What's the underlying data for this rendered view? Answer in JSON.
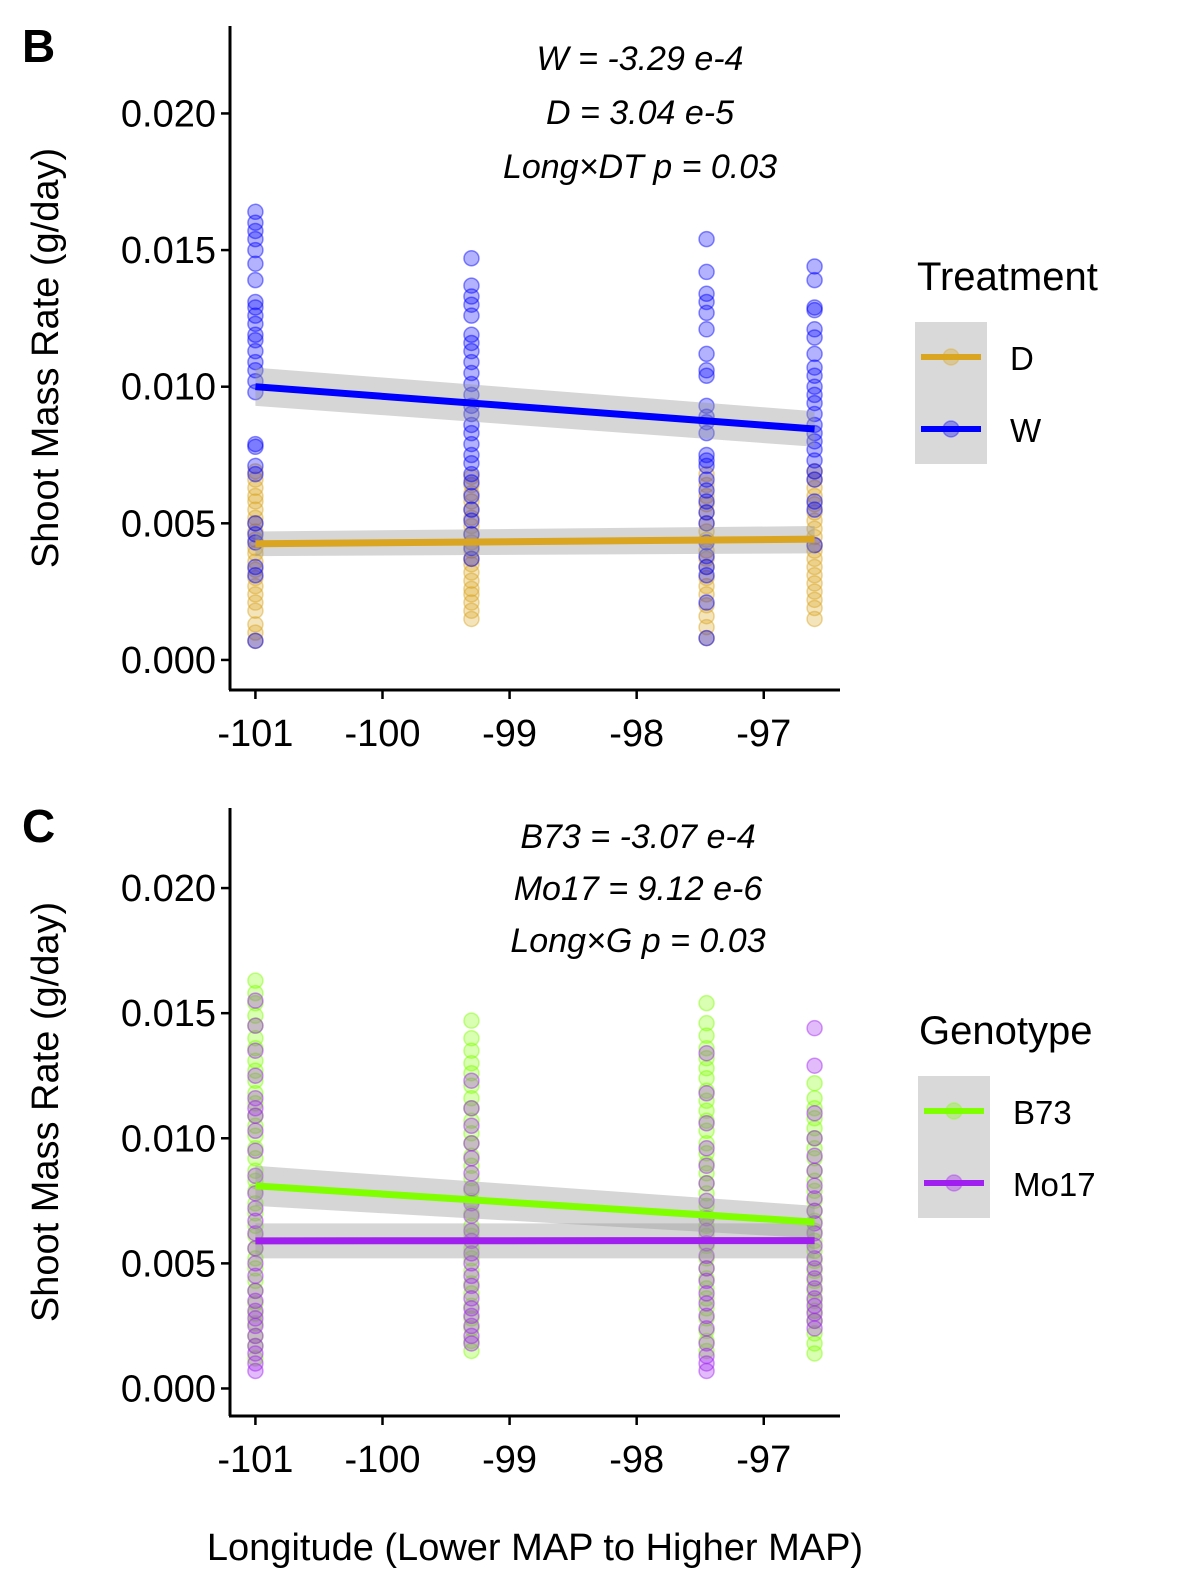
{
  "colors": {
    "D": "#DAA520",
    "W": "#0000FF",
    "B73": "#7FFF00",
    "Mo17": "#A020F0",
    "ribbon": "#999999",
    "legend_key_bg": "#D9D9D9"
  },
  "chart_data": [
    {
      "type": "scatter",
      "panel_label": "B",
      "xlabel": "",
      "ylabel": "Shoot Mass Rate (g/day)",
      "xlim": [
        -101.2,
        -96.4
      ],
      "ylim": [
        -0.0011,
        0.0232
      ],
      "xticks": [
        -101,
        -100,
        -99,
        -98,
        -97
      ],
      "xtick_labels": [
        "-101",
        "-100",
        "-99",
        "-98",
        "-97"
      ],
      "yticks": [
        0,
        0.005,
        0.01,
        0.015,
        0.02
      ],
      "ytick_labels": [
        "0.000",
        "0.005",
        "0.010",
        "0.015",
        "0.020"
      ],
      "grid": false,
      "annotations": [
        "W = -3.29 e-4",
        "D = 3.04 e-5",
        "Long×DT p = 0.03"
      ],
      "legend": {
        "title": "Treatment",
        "position": "right",
        "entries": [
          "D",
          "W"
        ]
      },
      "x_groups": [
        -101.0,
        -99.3,
        -97.45,
        -96.6
      ],
      "series": [
        {
          "name": "D",
          "color_key": "D",
          "points": [
            [
              -101.0,
              [
                0.0007,
                0.001,
                0.0013,
                0.0018,
                0.0021,
                0.0024,
                0.0027,
                0.003,
                0.0033,
                0.0036,
                0.0039,
                0.0041,
                0.0044,
                0.0047,
                0.005,
                0.0052,
                0.0055,
                0.0058,
                0.006,
                0.0063,
                0.0066,
                0.0069
              ]
            ],
            [
              -99.3,
              [
                0.0015,
                0.0018,
                0.0021,
                0.0024,
                0.0026,
                0.0029,
                0.0032,
                0.0035,
                0.0037,
                0.004,
                0.0043,
                0.0046,
                0.0049,
                0.0052,
                0.0055,
                0.0058,
                0.0061,
                0.0064,
                0.0067
              ]
            ],
            [
              -97.45,
              [
                0.0008,
                0.0012,
                0.0016,
                0.002,
                0.0024,
                0.0027,
                0.003,
                0.0034,
                0.0037,
                0.004,
                0.0044,
                0.0047,
                0.005,
                0.0054,
                0.0057,
                0.006,
                0.0064,
                0.0068
              ]
            ],
            [
              -96.6,
              [
                0.0015,
                0.0019,
                0.0022,
                0.0025,
                0.0028,
                0.0031,
                0.0034,
                0.0037,
                0.004,
                0.0042,
                0.0045,
                0.0048,
                0.0051,
                0.0054,
                0.0057,
                0.006,
                0.0063,
                0.0066,
                0.0069
              ]
            ]
          ],
          "fit": {
            "x": [
              -101.0,
              -96.6
            ],
            "y": [
              0.00425,
              0.00442
            ],
            "se_low": [
              0.0038,
              0.0039
            ],
            "se_high": [
              0.0047,
              0.0049
            ]
          }
        },
        {
          "name": "W",
          "color_key": "W",
          "points": [
            [
              -101.0,
              [
                0.0007,
                0.0031,
                0.0034,
                0.0043,
                0.0046,
                0.005,
                0.0068,
                0.0071,
                0.0078,
                0.0079,
                0.0098,
                0.0102,
                0.0106,
                0.0109,
                0.0113,
                0.0117,
                0.0119,
                0.0123,
                0.0126,
                0.0129,
                0.0131,
                0.0139,
                0.0145,
                0.015,
                0.0154,
                0.0157,
                0.016,
                0.0164
              ]
            ],
            [
              -99.3,
              [
                0.0037,
                0.0041,
                0.0046,
                0.0051,
                0.0055,
                0.006,
                0.0065,
                0.0068,
                0.0072,
                0.0075,
                0.0079,
                0.0083,
                0.0086,
                0.009,
                0.0093,
                0.0097,
                0.0101,
                0.0105,
                0.0109,
                0.0113,
                0.0116,
                0.0119,
                0.0126,
                0.013,
                0.0133,
                0.0137,
                0.0147
              ]
            ],
            [
              -97.45,
              [
                0.0008,
                0.0021,
                0.0031,
                0.0034,
                0.0038,
                0.0043,
                0.005,
                0.0054,
                0.0058,
                0.0062,
                0.0066,
                0.0071,
                0.0073,
                0.0075,
                0.0083,
                0.0087,
                0.0089,
                0.0093,
                0.0104,
                0.0106,
                0.0112,
                0.0121,
                0.0127,
                0.0131,
                0.0134,
                0.0142,
                0.0154
              ]
            ],
            [
              -96.6,
              [
                0.0042,
                0.0055,
                0.0058,
                0.0066,
                0.0069,
                0.0073,
                0.0077,
                0.008,
                0.0083,
                0.0086,
                0.009,
                0.0094,
                0.0097,
                0.01,
                0.0104,
                0.0107,
                0.0112,
                0.0118,
                0.0121,
                0.0128,
                0.0129,
                0.0139,
                0.0144
              ]
            ]
          ],
          "fit": {
            "x": [
              -101.0,
              -96.6
            ],
            "y": [
              0.01,
              0.00845
            ],
            "se_low": [
              0.0093,
              0.0078
            ],
            "se_high": [
              0.0107,
              0.0091
            ]
          }
        }
      ]
    },
    {
      "type": "scatter",
      "panel_label": "C",
      "xlabel": "Longitude (Lower MAP to Higher MAP)",
      "ylabel": "Shoot Mass Rate (g/day)",
      "xlim": [
        -101.2,
        -96.4
      ],
      "ylim": [
        -0.0011,
        0.0232
      ],
      "xticks": [
        -101,
        -100,
        -99,
        -98,
        -97
      ],
      "xtick_labels": [
        "-101",
        "-100",
        "-99",
        "-98",
        "-97"
      ],
      "yticks": [
        0,
        0.005,
        0.01,
        0.015,
        0.02
      ],
      "ytick_labels": [
        "0.000",
        "0.005",
        "0.010",
        "0.015",
        "0.020"
      ],
      "grid": false,
      "annotations": [
        "B73 = -3.07 e-4",
        "Mo17 = 9.12 e-6",
        "Long×G p = 0.03"
      ],
      "legend": {
        "title": "Genotype",
        "position": "right",
        "entries": [
          "B73",
          "Mo17"
        ]
      },
      "x_groups": [
        -101.0,
        -99.3,
        -97.45,
        -96.6
      ],
      "series": [
        {
          "name": "B73",
          "color_key": "B73",
          "points": [
            [
              -101.0,
              [
                0.0012,
                0.0017,
                0.0021,
                0.0026,
                0.003,
                0.0034,
                0.0039,
                0.0043,
                0.0048,
                0.0052,
                0.0056,
                0.0061,
                0.0065,
                0.007,
                0.0074,
                0.0079,
                0.0083,
                0.0087,
                0.0092,
                0.0096,
                0.0101,
                0.0105,
                0.0109,
                0.0114,
                0.0118,
                0.0123,
                0.0127,
                0.0131,
                0.0136,
                0.014,
                0.0145,
                0.0149,
                0.0154,
                0.0158,
                0.0163
              ]
            ],
            [
              -99.3,
              [
                0.0015,
                0.0019,
                0.0024,
                0.0028,
                0.0033,
                0.0038,
                0.0042,
                0.0047,
                0.0052,
                0.0056,
                0.0061,
                0.0065,
                0.007,
                0.0075,
                0.0079,
                0.0084,
                0.0089,
                0.0093,
                0.0098,
                0.0102,
                0.0107,
                0.0112,
                0.0116,
                0.0121,
                0.0126,
                0.013,
                0.0135,
                0.014,
                0.0147
              ]
            ],
            [
              -97.45,
              [
                0.0015,
                0.0019,
                0.0023,
                0.0028,
                0.0032,
                0.0036,
                0.004,
                0.0044,
                0.0048,
                0.0052,
                0.0057,
                0.0061,
                0.0065,
                0.0069,
                0.0073,
                0.0078,
                0.0082,
                0.0086,
                0.009,
                0.0094,
                0.0098,
                0.0103,
                0.0107,
                0.0111,
                0.0115,
                0.0119,
                0.0124,
                0.0128,
                0.0132,
                0.0136,
                0.0141,
                0.0146,
                0.0154
              ]
            ],
            [
              -96.6,
              [
                0.0014,
                0.0018,
                0.0022,
                0.0027,
                0.0031,
                0.0035,
                0.0039,
                0.0043,
                0.0047,
                0.0051,
                0.0055,
                0.0059,
                0.0063,
                0.0067,
                0.0071,
                0.0075,
                0.0079,
                0.0083,
                0.0087,
                0.0092,
                0.0096,
                0.01,
                0.0104,
                0.0108,
                0.0112,
                0.0116,
                0.0122
              ]
            ]
          ],
          "fit": {
            "x": [
              -101.0,
              -96.6
            ],
            "y": [
              0.0081,
              0.00665
            ],
            "se_low": [
              0.0073,
              0.006
            ],
            "se_high": [
              0.0089,
              0.0073
            ]
          }
        },
        {
          "name": "Mo17",
          "color_key": "Mo17",
          "points": [
            [
              -101.0,
              [
                0.0007,
                0.001,
                0.0014,
                0.0017,
                0.0021,
                0.0025,
                0.0028,
                0.0031,
                0.0035,
                0.0039,
                0.0045,
                0.005,
                0.0056,
                0.0062,
                0.0067,
                0.0072,
                0.0078,
                0.0085,
                0.0095,
                0.0103,
                0.0109,
                0.0112,
                0.0116,
                0.0125,
                0.0135,
                0.0145,
                0.0155
              ]
            ],
            [
              -99.3,
              [
                0.0018,
                0.0021,
                0.0025,
                0.0029,
                0.0032,
                0.0036,
                0.0041,
                0.0045,
                0.005,
                0.0054,
                0.0059,
                0.0063,
                0.0069,
                0.0074,
                0.008,
                0.0086,
                0.0092,
                0.0098,
                0.0105,
                0.0112,
                0.0123
              ]
            ],
            [
              -97.45,
              [
                0.0007,
                0.001,
                0.0013,
                0.0018,
                0.0024,
                0.0029,
                0.0034,
                0.0038,
                0.0043,
                0.0048,
                0.0053,
                0.0058,
                0.0063,
                0.0068,
                0.0075,
                0.0082,
                0.0089,
                0.0096,
                0.0106,
                0.0118,
                0.0134
              ]
            ],
            [
              -96.6,
              [
                0.0024,
                0.0027,
                0.003,
                0.0033,
                0.0036,
                0.004,
                0.0044,
                0.0048,
                0.0052,
                0.0057,
                0.0062,
                0.0066,
                0.0071,
                0.0076,
                0.0081,
                0.0087,
                0.0093,
                0.01,
                0.011,
                0.0129,
                0.0144
              ]
            ]
          ],
          "fit": {
            "x": [
              -101.0,
              -96.6
            ],
            "y": [
              0.0059,
              0.00591
            ],
            "se_low": [
              0.0052,
              0.0052
            ],
            "se_high": [
              0.0066,
              0.0066
            ]
          }
        }
      ]
    }
  ]
}
